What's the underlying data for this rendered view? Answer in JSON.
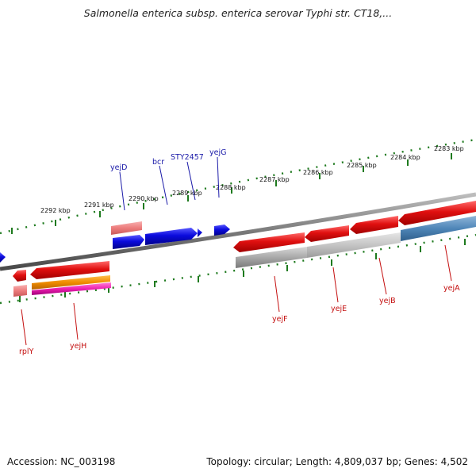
{
  "title": "Salmonella enterica subsp. enterica serovar Typhi str. CT18,...",
  "footer": {
    "accession": "Accession: NC_003198",
    "summary": "Topology: circular; Length: 4,809,037 bp; Genes: 4,502"
  },
  "colors": {
    "backbone": "#808080",
    "ruler": "#1e7a1e",
    "forward_gene": "#1010dd",
    "reverse_gene": "#e41818",
    "pseudo": "#f08080",
    "label_forward": "#1a1aa8",
    "label_reverse": "#c41010"
  },
  "ruler_labels": [
    "2292 kbp",
    "2291 kbp",
    "2290 kbp",
    "2289 kbp",
    "2288 kbp",
    "2287 kbp",
    "2286 kbp",
    "2285 kbp",
    "2284 kbp",
    "2283 kbp"
  ],
  "genes_top": [
    "yejD",
    "bcr",
    "STY2457",
    "yejG"
  ],
  "genes_bottom": [
    "rplY",
    "yejH",
    "yejF",
    "yejE",
    "yejB",
    "yejA"
  ]
}
